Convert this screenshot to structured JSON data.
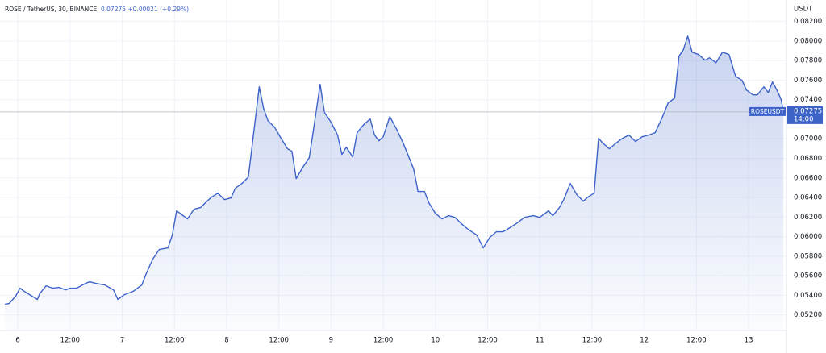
{
  "chart_data": {
    "type": "line",
    "title": "ROSE / TetherUS, 30, BINANCE",
    "quote": "0.07275 +0.00021 (+0.29%)",
    "y_unit": "USDT",
    "countdown": "14:00",
    "last_price": 0.07275,
    "grid": true,
    "xlim": [
      -4.1,
      176.7
    ],
    "ylim": [
      0.0504,
      0.0842
    ],
    "xticks": [
      {
        "value": 0,
        "label": "6"
      },
      {
        "value": 12,
        "label": "12:00"
      },
      {
        "value": 24,
        "label": "7"
      },
      {
        "value": 36,
        "label": "12:00"
      },
      {
        "value": 48,
        "label": "8"
      },
      {
        "value": 60,
        "label": "12:00"
      },
      {
        "value": 72,
        "label": "9"
      },
      {
        "value": 84,
        "label": "12:00"
      },
      {
        "value": 96,
        "label": "10"
      },
      {
        "value": 108,
        "label": "12:00"
      },
      {
        "value": 120,
        "label": "11"
      },
      {
        "value": 132,
        "label": "12:00"
      },
      {
        "value": 144,
        "label": "12"
      },
      {
        "value": 156,
        "label": "12:00"
      },
      {
        "value": 168,
        "label": "13"
      }
    ],
    "yticks": [
      {
        "value": 0.052,
        "label": "0.05200"
      },
      {
        "value": 0.054,
        "label": "0.05400"
      },
      {
        "value": 0.056,
        "label": "0.05600"
      },
      {
        "value": 0.058,
        "label": "0.05800"
      },
      {
        "value": 0.06,
        "label": "0.06000"
      },
      {
        "value": 0.062,
        "label": "0.06200"
      },
      {
        "value": 0.064,
        "label": "0.06400"
      },
      {
        "value": 0.066,
        "label": "0.06600"
      },
      {
        "value": 0.068,
        "label": "0.06800"
      },
      {
        "value": 0.07,
        "label": "0.07000"
      },
      {
        "value": 0.074,
        "label": "0.07400"
      },
      {
        "value": 0.076,
        "label": "0.07600"
      },
      {
        "value": 0.078,
        "label": "0.07800"
      },
      {
        "value": 0.08,
        "label": "0.08000"
      },
      {
        "value": 0.082,
        "label": "0.08200"
      }
    ],
    "x": [
      -3,
      -2,
      -0.5,
      0.5,
      1.5,
      3,
      4.5,
      5,
      6.5,
      8,
      9.5,
      11,
      12,
      13.5,
      15.5,
      16.5,
      18,
      20,
      22,
      23,
      24.5,
      26.5,
      28.5,
      29.5,
      31,
      32.5,
      34.5,
      35.5,
      36.5,
      38,
      39,
      40.5,
      42,
      43.5,
      44.5,
      46,
      47.5,
      49,
      50,
      51.5,
      53,
      54,
      55.5,
      56.5,
      57.5,
      59,
      60.5,
      62,
      63,
      64,
      65.5,
      67,
      68,
      69.5,
      70.5,
      72,
      73.5,
      74.5,
      75.5,
      77,
      78,
      79.5,
      81,
      82,
      83,
      84,
      85.5,
      87,
      88.5,
      89.5,
      91,
      92,
      93.5,
      94.5,
      96,
      97.5,
      99,
      100.5,
      102,
      103.5,
      105.5,
      107,
      108.5,
      110,
      111.5,
      112.5,
      114.5,
      116.5,
      118.5,
      120,
      122,
      123,
      124.5,
      125.5,
      127,
      128.5,
      130,
      131,
      132.5,
      133.5,
      134.5,
      136,
      137.5,
      139,
      140.5,
      142,
      143.5,
      145,
      146.5,
      148,
      149.5,
      151,
      152,
      153,
      154,
      155,
      156.5,
      158,
      159,
      160.5,
      162,
      163.5,
      165,
      166.5,
      167.5,
      169,
      170,
      171.5,
      172.5,
      173.5,
      174.5,
      175.5,
      176
    ],
    "series": [
      {
        "name": "ROSEUSDT",
        "color": "#3d63c9",
        "values": [
          0.05307,
          0.05315,
          0.0539,
          0.05472,
          0.05439,
          0.05398,
          0.05357,
          0.05414,
          0.05497,
          0.05472,
          0.0548,
          0.05455,
          0.05472,
          0.05472,
          0.05521,
          0.05538,
          0.05521,
          0.05505,
          0.05455,
          0.05357,
          0.05406,
          0.05439,
          0.05505,
          0.0562,
          0.05769,
          0.05868,
          0.05884,
          0.06016,
          0.06263,
          0.06214,
          0.06181,
          0.0628,
          0.06296,
          0.06362,
          0.06403,
          0.06444,
          0.06378,
          0.06395,
          0.06494,
          0.06543,
          0.06609,
          0.0698,
          0.07532,
          0.0731,
          0.07186,
          0.0712,
          0.07005,
          0.06898,
          0.06873,
          0.06593,
          0.06708,
          0.06807,
          0.07104,
          0.07557,
          0.07268,
          0.0717,
          0.07038,
          0.0684,
          0.06914,
          0.06815,
          0.07062,
          0.07145,
          0.07203,
          0.07038,
          0.0698,
          0.07021,
          0.07227,
          0.07104,
          0.06964,
          0.06856,
          0.06692,
          0.06461,
          0.06461,
          0.06345,
          0.06238,
          0.06181,
          0.06214,
          0.06197,
          0.06131,
          0.06074,
          0.06016,
          0.05884,
          0.05991,
          0.06049,
          0.06049,
          0.06074,
          0.06131,
          0.06197,
          0.06214,
          0.06197,
          0.06263,
          0.06214,
          0.06296,
          0.06378,
          0.06543,
          0.06428,
          0.06362,
          0.06403,
          0.06444,
          0.07005,
          0.06955,
          0.06898,
          0.06955,
          0.07005,
          0.07038,
          0.06972,
          0.07021,
          0.07038,
          0.07062,
          0.07203,
          0.07367,
          0.07417,
          0.07845,
          0.07911,
          0.08051,
          0.07887,
          0.07862,
          0.07804,
          0.07829,
          0.07779,
          0.07887,
          0.07862,
          0.07639,
          0.07598,
          0.07499,
          0.0745,
          0.0745,
          0.07532,
          0.07474,
          0.07582,
          0.07499,
          0.074,
          0.07275
        ]
      }
    ]
  }
}
